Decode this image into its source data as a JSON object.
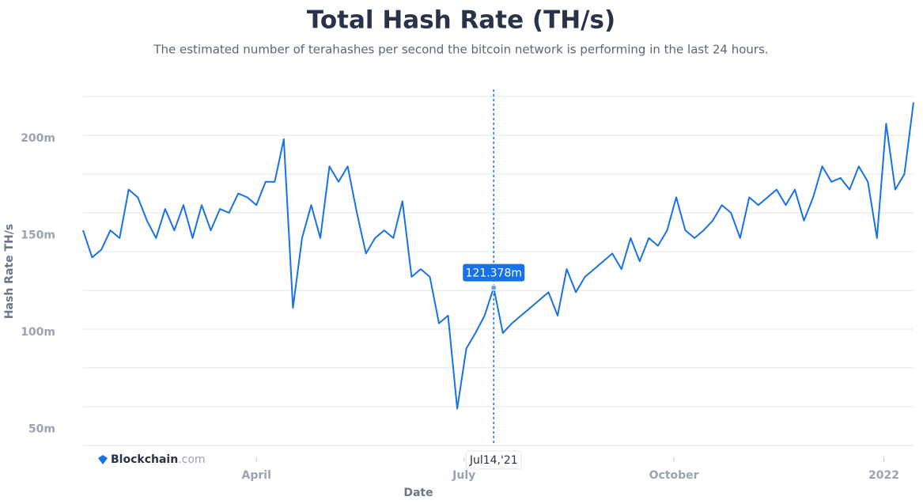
{
  "chart_data": {
    "type": "line",
    "title": "Total Hash Rate (TH/s)",
    "subtitle": "The estimated number of terahashes per second the bitcoin network is performing in the last 24 hours.",
    "x_label": "Date",
    "y_label": "Hash Rate TH/s",
    "brand": {
      "name": "Blockchain",
      "suffix": ".com"
    },
    "x": [
      "2021-01-15",
      "2021-01-19",
      "2021-01-23",
      "2021-01-27",
      "2021-01-31",
      "2021-02-04",
      "2021-02-08",
      "2021-02-12",
      "2021-02-16",
      "2021-02-20",
      "2021-02-24",
      "2021-02-28",
      "2021-03-04",
      "2021-03-08",
      "2021-03-12",
      "2021-03-16",
      "2021-03-20",
      "2021-03-24",
      "2021-03-28",
      "2021-04-01",
      "2021-04-05",
      "2021-04-09",
      "2021-04-13",
      "2021-04-17",
      "2021-04-21",
      "2021-04-25",
      "2021-04-29",
      "2021-05-03",
      "2021-05-07",
      "2021-05-11",
      "2021-05-15",
      "2021-05-19",
      "2021-05-23",
      "2021-05-27",
      "2021-05-31",
      "2021-06-04",
      "2021-06-08",
      "2021-06-12",
      "2021-06-16",
      "2021-06-20",
      "2021-06-24",
      "2021-06-28",
      "2021-07-02",
      "2021-07-06",
      "2021-07-10",
      "2021-07-14",
      "2021-07-18",
      "2021-07-22",
      "2021-07-26",
      "2021-07-30",
      "2021-08-03",
      "2021-08-07",
      "2021-08-11",
      "2021-08-15",
      "2021-08-19",
      "2021-08-23",
      "2021-08-27",
      "2021-08-31",
      "2021-09-04",
      "2021-09-08",
      "2021-09-12",
      "2021-09-16",
      "2021-09-20",
      "2021-09-24",
      "2021-09-28",
      "2021-10-02",
      "2021-10-06",
      "2021-10-10",
      "2021-10-14",
      "2021-10-18",
      "2021-10-22",
      "2021-10-26",
      "2021-10-30",
      "2021-11-03",
      "2021-11-07",
      "2021-11-11",
      "2021-11-15",
      "2021-11-19",
      "2021-11-23",
      "2021-11-27",
      "2021-12-01",
      "2021-12-05",
      "2021-12-09",
      "2021-12-13",
      "2021-12-17",
      "2021-12-21",
      "2021-12-25",
      "2021-12-29",
      "2022-01-02",
      "2022-01-06",
      "2022-01-10",
      "2022-01-14"
    ],
    "series": [
      {
        "name": "Hash Rate",
        "color": "#1672e6",
        "values": [
          151,
          137,
          141,
          151,
          147,
          172,
          168,
          156,
          147,
          162,
          151,
          164,
          147,
          164,
          151,
          162,
          160,
          170,
          168,
          164,
          176,
          176,
          198,
          111,
          147,
          164,
          147,
          184,
          176,
          184,
          160,
          139,
          147,
          151,
          147,
          166,
          127,
          131,
          127,
          103,
          107,
          59,
          90,
          98,
          107,
          121.378,
          98,
          103,
          107,
          111,
          115,
          119,
          107,
          131,
          119,
          127,
          131,
          135,
          139,
          131,
          147,
          135,
          147,
          143,
          151,
          168,
          151,
          147,
          151,
          156,
          164,
          160,
          147,
          168,
          164,
          168,
          172,
          164,
          172,
          156,
          168,
          184,
          176,
          178,
          172,
          184,
          176,
          147,
          206,
          172,
          180,
          217
        ]
      }
    ],
    "xlim": [
      "2021-01-15",
      "2022-01-14"
    ],
    "xticks": [
      {
        "value": "2021-04-01",
        "label": "April"
      },
      {
        "value": "2021-07-01",
        "label": "July"
      },
      {
        "value": "2021-10-01",
        "label": "October"
      },
      {
        "value": "2022-01-01",
        "label": "2022"
      }
    ],
    "ylim": [
      40,
      220
    ],
    "yticks": [
      {
        "value": 50,
        "label": "50m"
      },
      {
        "value": 100,
        "label": "100m"
      },
      {
        "value": 150,
        "label": "150m"
      },
      {
        "value": 200,
        "label": "200m"
      }
    ],
    "ygrid": [
      40,
      60,
      80,
      100,
      120,
      140,
      160,
      180,
      200,
      220
    ],
    "highlight": {
      "x": "2021-07-14",
      "x_label": "Jul14,'21",
      "value_label": "121.378m"
    }
  }
}
